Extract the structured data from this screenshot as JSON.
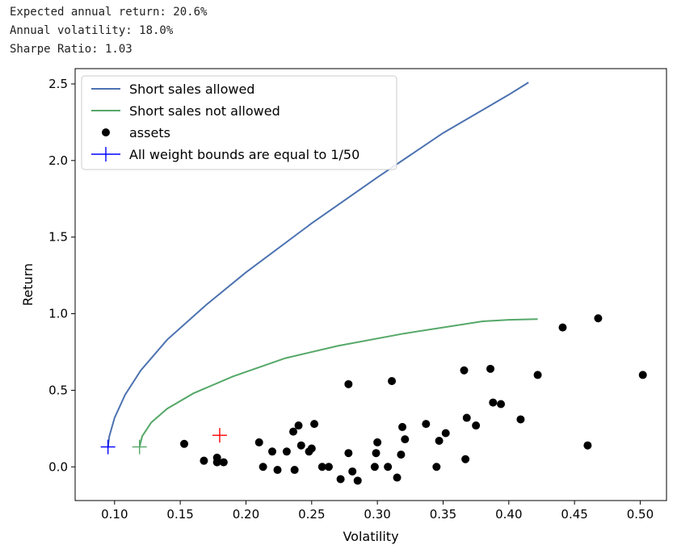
{
  "output": {
    "lines": [
      "Expected annual return: 20.6%",
      "Annual volatility: 18.0%",
      "Sharpe Ratio: 1.03"
    ]
  },
  "chart_data": {
    "type": "scatter",
    "xlabel": "Volatility",
    "ylabel": "Return",
    "xlim": [
      0.07,
      0.52
    ],
    "ylim": [
      -0.22,
      2.6
    ],
    "xticks": [
      0.1,
      0.15,
      0.2,
      0.25,
      0.3,
      0.35,
      0.4,
      0.45,
      0.5
    ],
    "xtick_labels": [
      "0.10",
      "0.15",
      "0.20",
      "0.25",
      "0.30",
      "0.35",
      "0.40",
      "0.45",
      "0.50"
    ],
    "yticks": [
      0.0,
      0.5,
      1.0,
      1.5,
      2.0,
      2.5
    ],
    "ytick_labels": [
      "0.0",
      "0.5",
      "1.0",
      "1.5",
      "2.0",
      "2.5"
    ],
    "legend_position": "top-left",
    "colors": {
      "short_allowed": "#4c72b0",
      "short_not_allowed": "#55a868",
      "assets": "#000000",
      "equal_weight_marker": "#0000ff",
      "optimal_marker": "#ff0000"
    },
    "series": [
      {
        "name": "Short sales allowed",
        "kind": "line",
        "color": "#4c72b0",
        "x": [
          0.095,
          0.096,
          0.1,
          0.108,
          0.12,
          0.14,
          0.17,
          0.2,
          0.25,
          0.3,
          0.35,
          0.4,
          0.415
        ],
        "y": [
          0.13,
          0.2,
          0.32,
          0.47,
          0.63,
          0.83,
          1.06,
          1.27,
          1.59,
          1.89,
          2.18,
          2.43,
          2.51
        ]
      },
      {
        "name": "Short sales not allowed",
        "kind": "line",
        "color": "#55a868",
        "x": [
          0.119,
          0.121,
          0.128,
          0.14,
          0.16,
          0.19,
          0.23,
          0.27,
          0.32,
          0.38,
          0.4,
          0.422
        ],
        "y": [
          0.13,
          0.2,
          0.29,
          0.38,
          0.48,
          0.59,
          0.71,
          0.79,
          0.87,
          0.95,
          0.96,
          0.965
        ]
      },
      {
        "name": "assets",
        "kind": "points",
        "color": "#000000",
        "points": [
          [
            0.153,
            0.15
          ],
          [
            0.168,
            0.04
          ],
          [
            0.178,
            0.03
          ],
          [
            0.178,
            0.06
          ],
          [
            0.183,
            0.03
          ],
          [
            0.21,
            0.16
          ],
          [
            0.213,
            0.0
          ],
          [
            0.22,
            0.1
          ],
          [
            0.224,
            -0.02
          ],
          [
            0.231,
            0.1
          ],
          [
            0.236,
            0.23
          ],
          [
            0.237,
            -0.02
          ],
          [
            0.24,
            0.27
          ],
          [
            0.242,
            0.14
          ],
          [
            0.248,
            0.1
          ],
          [
            0.25,
            0.12
          ],
          [
            0.252,
            0.28
          ],
          [
            0.258,
            0.0
          ],
          [
            0.263,
            0.0
          ],
          [
            0.272,
            -0.08
          ],
          [
            0.278,
            0.09
          ],
          [
            0.278,
            0.54
          ],
          [
            0.281,
            -0.03
          ],
          [
            0.285,
            -0.09
          ],
          [
            0.298,
            0.0
          ],
          [
            0.299,
            0.09
          ],
          [
            0.3,
            0.16
          ],
          [
            0.308,
            0.0
          ],
          [
            0.311,
            0.56
          ],
          [
            0.315,
            -0.07
          ],
          [
            0.318,
            0.08
          ],
          [
            0.319,
            0.26
          ],
          [
            0.321,
            0.18
          ],
          [
            0.337,
            0.28
          ],
          [
            0.345,
            0.0
          ],
          [
            0.347,
            0.17
          ],
          [
            0.352,
            0.22
          ],
          [
            0.366,
            0.63
          ],
          [
            0.367,
            0.05
          ],
          [
            0.368,
            0.32
          ],
          [
            0.375,
            0.27
          ],
          [
            0.386,
            0.64
          ],
          [
            0.388,
            0.42
          ],
          [
            0.394,
            0.41
          ],
          [
            0.409,
            0.31
          ],
          [
            0.422,
            0.6
          ],
          [
            0.441,
            0.91
          ],
          [
            0.46,
            0.14
          ],
          [
            0.468,
            0.97
          ],
          [
            0.502,
            0.6
          ]
        ]
      },
      {
        "name": "All weight bounds are equal to 1/50",
        "kind": "marker",
        "color": "#0000ff",
        "points": [
          [
            0.095,
            0.13
          ]
        ]
      },
      {
        "name": "",
        "kind": "marker",
        "color": "#55a868",
        "points": [
          [
            0.119,
            0.13
          ]
        ]
      },
      {
        "name": "",
        "kind": "marker",
        "color": "#ff0000",
        "points": [
          [
            0.18,
            0.206
          ]
        ]
      }
    ]
  }
}
